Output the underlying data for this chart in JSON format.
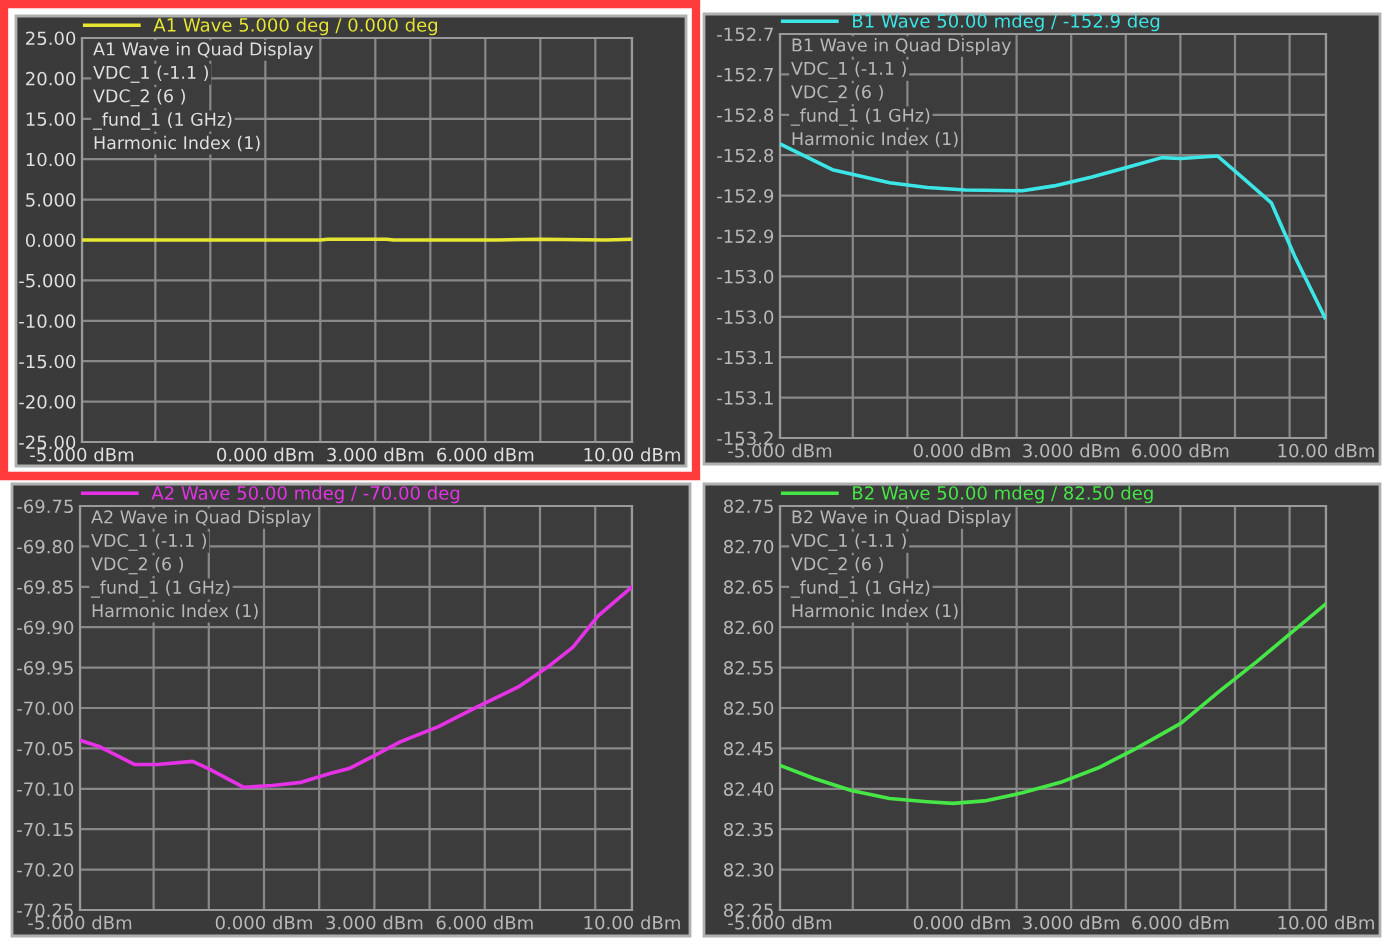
{
  "chart_data": [
    {
      "type": "line",
      "legend": "top",
      "grid": true,
      "line_style": "solid",
      "marker": "none",
      "series": [
        {
          "name": "A1 Wave 5.000 deg / 0.000 deg",
          "color": "#e6e632",
          "x": [
            -5,
            -2,
            1.5,
            1.7,
            3.3,
            3.5,
            6.3,
            7.5,
            9.3,
            10
          ],
          "values": [
            0,
            0,
            0,
            0.1,
            0.1,
            0,
            0,
            0.1,
            0,
            0.1
          ]
        }
      ],
      "annotations": [
        "A1 Wave in Quad Display",
        "VDC_1 (-1.1 )",
        "VDC_2 (6 )",
        "_fund_1 (1 GHz)",
        "Harmonic Index (1)"
      ],
      "xlim": [
        -5,
        10
      ],
      "xticks": [
        {
          "value": -5,
          "label": "-5.000 dBm"
        },
        {
          "value": -3,
          "label": null
        },
        {
          "value": -1.5,
          "label": null
        },
        {
          "value": 0,
          "label": "0.000 dBm"
        },
        {
          "value": 1.5,
          "label": null
        },
        {
          "value": 3,
          "label": "3.000 dBm"
        },
        {
          "value": 4.5,
          "label": null
        },
        {
          "value": 6,
          "label": "6.000 dBm"
        },
        {
          "value": 7.5,
          "label": null
        },
        {
          "value": 9,
          "label": null
        },
        {
          "value": 10,
          "label": "10.00 dBm"
        }
      ],
      "ylim": [
        -25,
        25
      ],
      "yticks": [
        {
          "value": 25,
          "label": "25.00"
        },
        {
          "value": 20,
          "label": "20.00"
        },
        {
          "value": 15,
          "label": "15.00"
        },
        {
          "value": 10,
          "label": "10.00"
        },
        {
          "value": 5,
          "label": "5.000"
        },
        {
          "value": 0,
          "label": "0.000"
        },
        {
          "value": -5,
          "label": "-5.000"
        },
        {
          "value": -10,
          "label": "-10.00"
        },
        {
          "value": -15,
          "label": "-15.00"
        },
        {
          "value": -20,
          "label": "-20.00"
        },
        {
          "value": -25,
          "label": "-25.00"
        }
      ]
    },
    {
      "type": "line",
      "legend": "top",
      "grid": true,
      "line_style": "solid",
      "marker": "none",
      "series": [
        {
          "name": "B1 Wave 50.00 mdeg / -152.9 deg",
          "color": "#3ce6e6",
          "x": [
            -5,
            -3.56,
            -1.99,
            -0.95,
            0.1,
            1.66,
            2.53,
            3.57,
            4.62,
            5.49,
            6.01,
            7.02,
            7.66,
            8.5,
            9.14,
            9.97
          ],
          "values": [
            -152.836,
            -152.868,
            -152.884,
            -152.89,
            -152.893,
            -152.894,
            -152.888,
            -152.877,
            -152.864,
            -152.853,
            -152.854,
            -152.851,
            -152.876,
            -152.909,
            -152.975,
            -153.051
          ]
        }
      ],
      "annotations": [
        "B1 Wave in Quad Display",
        "VDC_1 (-1.1 )",
        "VDC_2 (6 )",
        "_fund_1 (1 GHz)",
        "Harmonic Index (1)"
      ],
      "xlim": [
        -5,
        10
      ],
      "xticks": [
        {
          "value": -5,
          "label": "-5.000 dBm"
        },
        {
          "value": -3,
          "label": null
        },
        {
          "value": -1.5,
          "label": null
        },
        {
          "value": 0,
          "label": "0.000 dBm"
        },
        {
          "value": 1.5,
          "label": null
        },
        {
          "value": 3,
          "label": "3.000 dBm"
        },
        {
          "value": 4.5,
          "label": null
        },
        {
          "value": 6,
          "label": "6.000 dBm"
        },
        {
          "value": 7.5,
          "label": null
        },
        {
          "value": 9,
          "label": null
        },
        {
          "value": 10,
          "label": "10.00 dBm"
        }
      ],
      "ylim": [
        -153.2,
        -152.7
      ],
      "yticks": [
        {
          "value": -152.7,
          "label": "-152.7"
        },
        {
          "value": -152.75,
          "label": "-152.7"
        },
        {
          "value": -152.8,
          "label": "-152.8"
        },
        {
          "value": -152.85,
          "label": "-152.8"
        },
        {
          "value": -152.9,
          "label": "-152.9"
        },
        {
          "value": -152.95,
          "label": "-152.9"
        },
        {
          "value": -153.0,
          "label": "-153.0"
        },
        {
          "value": -153.05,
          "label": "-153.0"
        },
        {
          "value": -153.1,
          "label": "-153.1"
        },
        {
          "value": -153.15,
          "label": "-153.1"
        },
        {
          "value": -153.2,
          "label": "-153.2"
        }
      ]
    },
    {
      "type": "line",
      "legend": "top",
      "grid": true,
      "line_style": "solid",
      "marker": "none",
      "series": [
        {
          "name": "A2 Wave 50.00 mdeg / -70.00 deg",
          "color": "#e632e6",
          "x": [
            -5,
            -4.46,
            -3.51,
            -2.9,
            -1.94,
            -1.51,
            -0.56,
            0.23,
            1.01,
            1.79,
            2.31,
            3.0,
            3.7,
            4.74,
            5.78,
            6.91,
            7.69,
            8.39,
            9.08,
            10
          ],
          "values": [
            -70.04,
            -70.048,
            -70.07,
            -70.07,
            -70.066,
            -70.075,
            -70.098,
            -70.096,
            -70.092,
            -70.081,
            -70.075,
            -70.059,
            -70.042,
            -70.023,
            -69.999,
            -69.974,
            -69.95,
            -69.925,
            -69.886,
            -69.85
          ]
        }
      ],
      "annotations": [
        "A2 Wave in Quad Display",
        "VDC_1 (-1.1 )",
        "VDC_2 (6 )",
        "_fund_1 (1 GHz)",
        "Harmonic Index (1)"
      ],
      "xlim": [
        -5,
        10
      ],
      "xticks": [
        {
          "value": -5,
          "label": "-5.000 dBm"
        },
        {
          "value": -3,
          "label": null
        },
        {
          "value": -1.5,
          "label": null
        },
        {
          "value": 0,
          "label": "0.000 dBm"
        },
        {
          "value": 1.5,
          "label": null
        },
        {
          "value": 3,
          "label": "3.000 dBm"
        },
        {
          "value": 4.5,
          "label": null
        },
        {
          "value": 6,
          "label": "6.000 dBm"
        },
        {
          "value": 7.5,
          "label": null
        },
        {
          "value": 9,
          "label": null
        },
        {
          "value": 10,
          "label": "10.00 dBm"
        }
      ],
      "ylim": [
        -70.25,
        -69.75
      ],
      "yticks": [
        {
          "value": -69.75,
          "label": "-69.75"
        },
        {
          "value": -69.8,
          "label": "-69.80"
        },
        {
          "value": -69.85,
          "label": "-69.85"
        },
        {
          "value": -69.9,
          "label": "-69.90"
        },
        {
          "value": -69.95,
          "label": "-69.95"
        },
        {
          "value": -70.0,
          "label": "-70.00"
        },
        {
          "value": -70.05,
          "label": "-70.05"
        },
        {
          "value": -70.1,
          "label": "-70.10"
        },
        {
          "value": -70.15,
          "label": "-70.15"
        },
        {
          "value": -70.2,
          "label": "-70.20"
        },
        {
          "value": -70.25,
          "label": "-70.25"
        }
      ]
    },
    {
      "type": "line",
      "legend": "top",
      "grid": true,
      "line_style": "solid",
      "marker": "none",
      "series": [
        {
          "name": "B2 Wave 50.00 mdeg / 82.50 deg",
          "color": "#46e646",
          "x": [
            -5,
            -4.08,
            -3.04,
            -1.99,
            -0.95,
            -0.25,
            0.62,
            1.66,
            2.71,
            3.75,
            4.79,
            6.01,
            7.05,
            8.09,
            8.96,
            10
          ],
          "values": [
            82.429,
            82.413,
            82.398,
            82.388,
            82.384,
            82.382,
            82.385,
            82.395,
            82.408,
            82.426,
            82.45,
            82.481,
            82.52,
            82.557,
            82.59,
            82.629
          ]
        }
      ],
      "annotations": [
        "B2 Wave in Quad Display",
        "VDC_1 (-1.1 )",
        "VDC_2 (6 )",
        "_fund_1 (1 GHz)",
        "Harmonic Index (1)"
      ],
      "xlim": [
        -5,
        10
      ],
      "xticks": [
        {
          "value": -5,
          "label": "-5.000 dBm"
        },
        {
          "value": -3,
          "label": null
        },
        {
          "value": -1.5,
          "label": null
        },
        {
          "value": 0,
          "label": "0.000 dBm"
        },
        {
          "value": 1.5,
          "label": null
        },
        {
          "value": 3,
          "label": "3.000 dBm"
        },
        {
          "value": 4.5,
          "label": null
        },
        {
          "value": 6,
          "label": "6.000 dBm"
        },
        {
          "value": 7.5,
          "label": null
        },
        {
          "value": 9,
          "label": null
        },
        {
          "value": 10,
          "label": "10.00 dBm"
        }
      ],
      "ylim": [
        82.25,
        82.75
      ],
      "yticks": [
        {
          "value": 82.75,
          "label": "82.75"
        },
        {
          "value": 82.7,
          "label": "82.70"
        },
        {
          "value": 82.65,
          "label": "82.65"
        },
        {
          "value": 82.6,
          "label": "82.60"
        },
        {
          "value": 82.55,
          "label": "82.55"
        },
        {
          "value": 82.5,
          "label": "82.50"
        },
        {
          "value": 82.45,
          "label": "82.45"
        },
        {
          "value": 82.4,
          "label": "82.40"
        },
        {
          "value": 82.35,
          "label": "82.35"
        },
        {
          "value": 82.3,
          "label": "82.30"
        },
        {
          "value": 82.25,
          "label": "82.25"
        }
      ]
    }
  ]
}
